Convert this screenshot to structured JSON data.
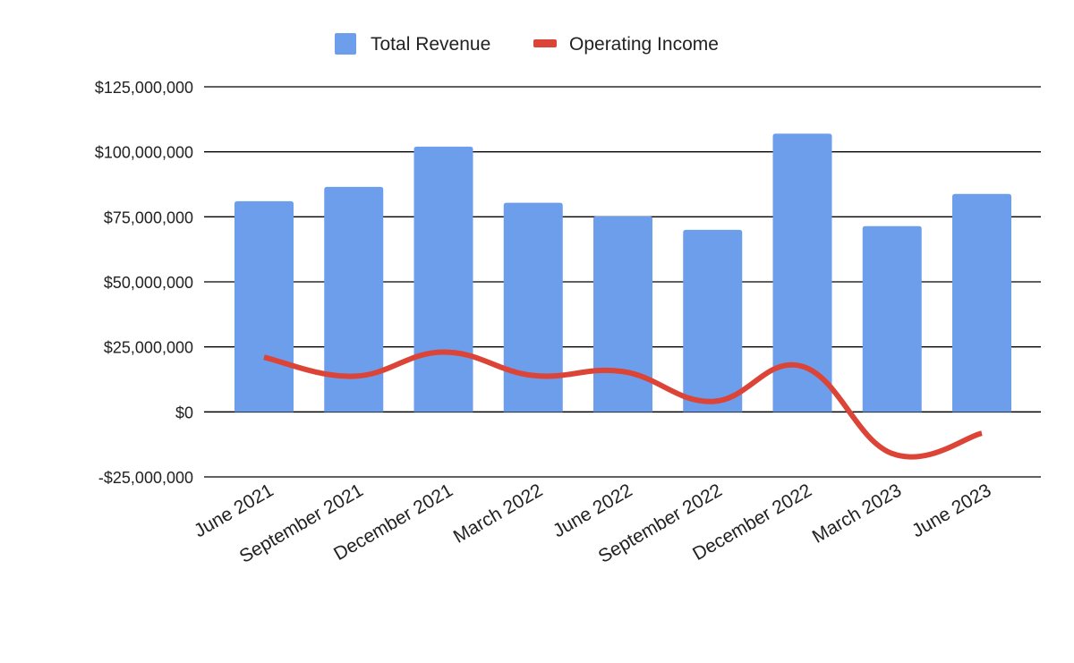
{
  "chart_data": {
    "type": "bar",
    "title": "",
    "xlabel": "",
    "ylabel": "",
    "categories": [
      "June 2021",
      "September 2021",
      "December 2021",
      "March 2022",
      "June 2022",
      "September 2022",
      "December 2022",
      "March 2023",
      "June 2023"
    ],
    "series": [
      {
        "name": "Total Revenue",
        "type": "bar",
        "color": "#6d9eeb",
        "values": [
          81000000,
          86500000,
          102000000,
          80400000,
          75200000,
          70000000,
          107000000,
          71400000,
          83800000
        ]
      },
      {
        "name": "Operating Income",
        "type": "line",
        "smooth": true,
        "color": "#db4437",
        "values": [
          21000000,
          13700000,
          23000000,
          14000000,
          15500000,
          4000000,
          17500000,
          -16000000,
          -8200000
        ]
      }
    ],
    "ylim": [
      -25000000,
      125000000
    ],
    "yticks": [
      -25000000,
      0,
      25000000,
      50000000,
      75000000,
      100000000,
      125000000
    ],
    "ytick_labels": [
      "-$25,000,000",
      "$0",
      "$25,000,000",
      "$50,000,000",
      "$75,000,000",
      "$100,000,000",
      "$125,000,000"
    ],
    "grid": true,
    "legend": "top"
  }
}
